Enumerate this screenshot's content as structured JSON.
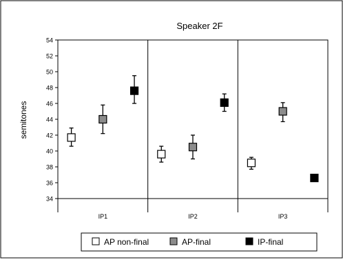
{
  "chart_data": {
    "type": "scatter",
    "title": "Speaker 2F",
    "ylabel": "semitones",
    "xlabel": "",
    "ylim": [
      34,
      54
    ],
    "yticks": [
      34,
      36,
      38,
      40,
      42,
      44,
      46,
      48,
      50,
      52,
      54
    ],
    "categories": [
      "IP1",
      "IP2",
      "IP3"
    ],
    "grid": false,
    "legend_position": "bottom",
    "error_bars": true,
    "series": [
      {
        "name": "AP non-final",
        "color": "#ffffff",
        "values": [
          41.7,
          39.6,
          38.5
        ],
        "err_low": [
          40.6,
          38.6,
          37.7
        ],
        "err_high": [
          42.9,
          40.6,
          39.2
        ]
      },
      {
        "name": "AP-final",
        "color": "#8c8c8c",
        "values": [
          44.0,
          40.5,
          45.0
        ],
        "err_low": [
          42.2,
          39.0,
          43.7
        ],
        "err_high": [
          45.8,
          42.0,
          46.1
        ]
      },
      {
        "name": "IP-final",
        "color": "#000000",
        "values": [
          47.6,
          46.1,
          36.6
        ],
        "err_low": [
          46.0,
          45.0,
          36.2
        ],
        "err_high": [
          49.5,
          47.2,
          37.0
        ]
      }
    ]
  }
}
